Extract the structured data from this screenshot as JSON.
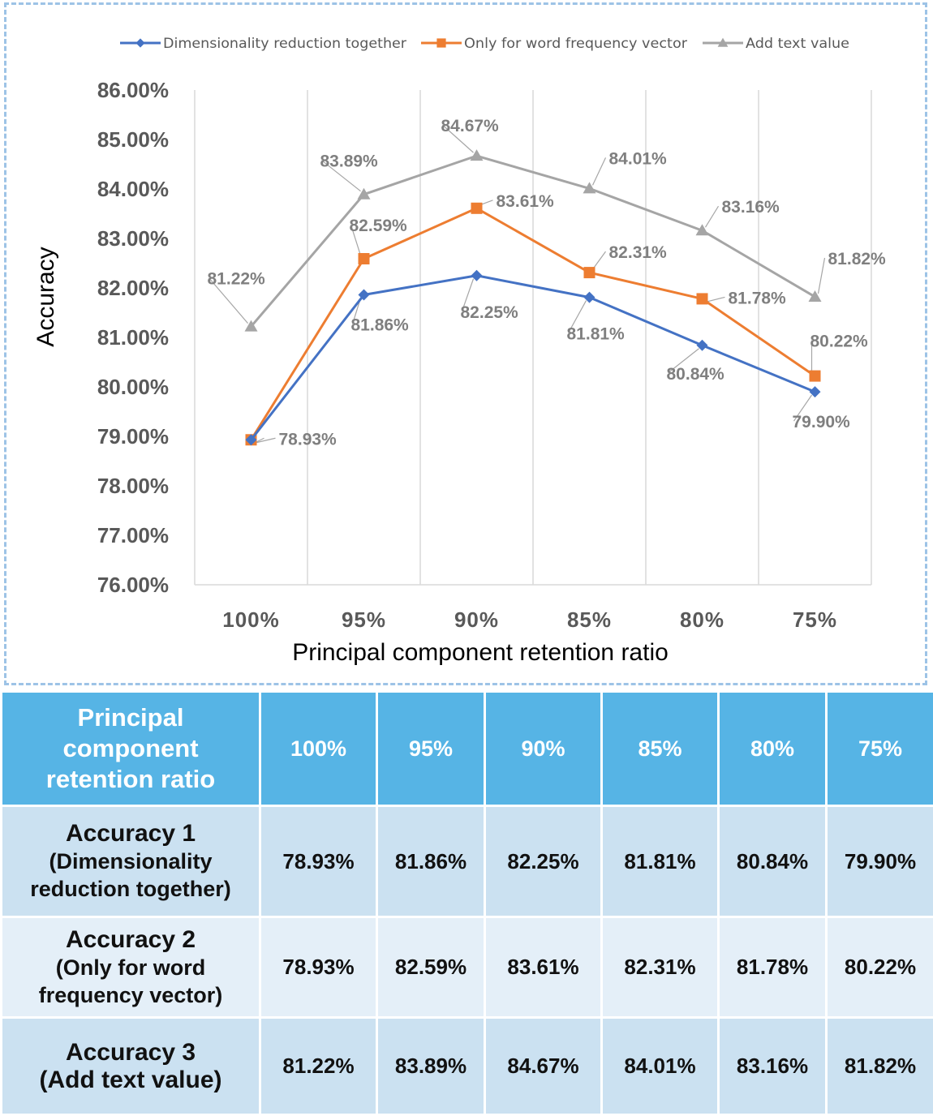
{
  "chart_data": {
    "type": "line",
    "xlabel": "Principal component retention ratio",
    "ylabel": "Accuracy",
    "categories": [
      "100%",
      "95%",
      "90%",
      "85%",
      "80%",
      "75%"
    ],
    "ylim": [
      76,
      86
    ],
    "ytick_step": 1,
    "ytick_labels": [
      "86.00%",
      "85.00%",
      "84.00%",
      "83.00%",
      "82.00%",
      "81.00%",
      "80.00%",
      "79.00%",
      "78.00%",
      "77.00%",
      "76.00%"
    ],
    "grid": "vertical",
    "legend_position": "top",
    "series": [
      {
        "name": "Dimensionality reduction together",
        "color": "#4472c4",
        "marker": "diamond",
        "values": [
          78.93,
          81.86,
          82.25,
          81.81,
          80.84,
          79.9
        ],
        "labels": [
          "78.93%",
          "81.86%",
          "82.25%",
          "81.81%",
          "80.84%",
          "79.90%"
        ]
      },
      {
        "name": "Only for word frequency vector",
        "color": "#ed7d31",
        "marker": "square",
        "values": [
          78.93,
          82.59,
          83.61,
          82.31,
          81.78,
          80.22
        ],
        "labels": [
          "78.93%",
          "82.59%",
          "83.61%",
          "82.31%",
          "81.78%",
          "80.22%"
        ]
      },
      {
        "name": "Add text value",
        "color": "#a5a5a5",
        "marker": "triangle",
        "values": [
          81.22,
          83.89,
          84.67,
          84.01,
          83.16,
          81.82
        ],
        "labels": [
          "81.22%",
          "83.89%",
          "84.67%",
          "84.01%",
          "83.16%",
          "81.82%"
        ]
      }
    ]
  },
  "table": {
    "header_label": [
      "Principal",
      "component",
      "retention ratio"
    ],
    "columns": [
      "100%",
      "95%",
      "90%",
      "85%",
      "80%",
      "75%"
    ],
    "rows": [
      {
        "label_main": "Accuracy 1",
        "label_sub": [
          "(Dimensionality",
          "reduction together)"
        ],
        "values": [
          "78.93%",
          "81.86%",
          "82.25%",
          "81.81%",
          "80.84%",
          "79.90%"
        ]
      },
      {
        "label_main": "Accuracy 2",
        "label_sub": [
          "(Only for word",
          "frequency vector)"
        ],
        "values": [
          "78.93%",
          "82.59%",
          "83.61%",
          "82.31%",
          "81.78%",
          "80.22%"
        ]
      },
      {
        "label_main": "Accuracy 3",
        "label_sub": [
          "(Add text value)"
        ],
        "values": [
          "81.22%",
          "83.89%",
          "84.67%",
          "84.01%",
          "83.16%",
          "81.82%"
        ]
      }
    ]
  }
}
